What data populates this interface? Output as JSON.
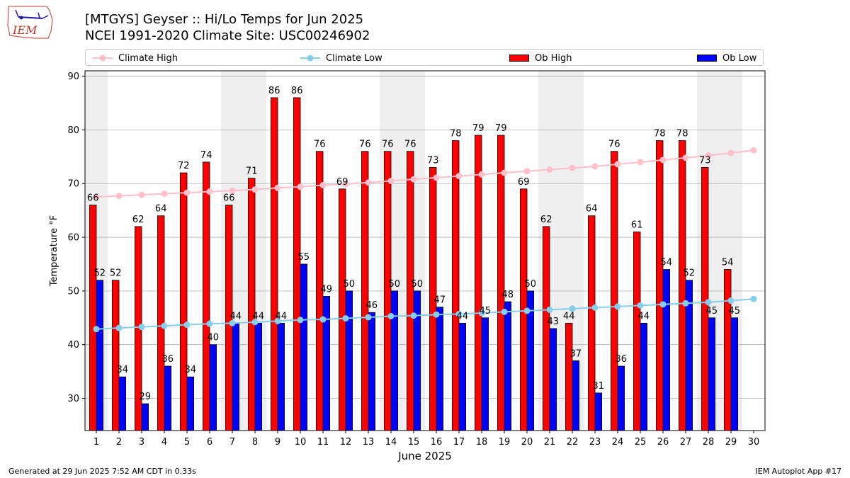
{
  "header": {
    "title": "[MTGYS] Geyser  :: Hi/Lo Temps for Jun 2025",
    "subtitle": "NCEI 1991-2020 Climate Site: USC00246902",
    "logo_text": "IEM"
  },
  "legend": {
    "climate_high": "Climate High",
    "climate_low": "Climate Low",
    "ob_high": "Ob High",
    "ob_low": "Ob Low"
  },
  "footer": {
    "generated": "Generated at 29 Jun 2025 7:52 AM CDT in 0.33s",
    "app": "IEM Autoplot App #17"
  },
  "colors": {
    "ob_high": "#ff0000",
    "ob_low": "#0000ff",
    "climate_high": "#ffc0cb",
    "climate_low": "#87ceeb",
    "weekend_shade": "#efefef",
    "grid": "#b0b0b0"
  },
  "chart_data": {
    "type": "bar",
    "xlabel": "June 2025",
    "ylabel": "Temperature °F",
    "ylim": [
      24,
      91
    ],
    "yticks": [
      30,
      40,
      50,
      60,
      70,
      80,
      90
    ],
    "grid": "horizontal",
    "legend_position": "top",
    "categories": [
      "1",
      "2",
      "3",
      "4",
      "5",
      "6",
      "7",
      "8",
      "9",
      "10",
      "11",
      "12",
      "13",
      "14",
      "15",
      "16",
      "17",
      "18",
      "19",
      "20",
      "21",
      "22",
      "23",
      "24",
      "25",
      "26",
      "27",
      "28",
      "29",
      "30"
    ],
    "shaded_day_ranges": [
      [
        1,
        1
      ],
      [
        7,
        8
      ],
      [
        14,
        15
      ],
      [
        21,
        22
      ],
      [
        28,
        29
      ]
    ],
    "series": [
      {
        "name": "Ob High",
        "kind": "bar",
        "values": [
          66,
          52,
          62,
          64,
          72,
          74,
          66,
          71,
          86,
          86,
          76,
          69,
          76,
          76,
          76,
          73,
          78,
          79,
          79,
          69,
          62,
          44,
          64,
          76,
          61,
          78,
          78,
          73,
          54,
          null
        ]
      },
      {
        "name": "Ob Low",
        "kind": "bar",
        "values": [
          52,
          34,
          29,
          36,
          34,
          40,
          44,
          44,
          44,
          55,
          49,
          50,
          46,
          50,
          50,
          47,
          44,
          45,
          48,
          50,
          43,
          37,
          31,
          36,
          44,
          54,
          52,
          45,
          45,
          null
        ]
      },
      {
        "name": "Climate High",
        "kind": "line",
        "values": [
          67.5,
          67.7,
          67.9,
          68.1,
          68.3,
          68.5,
          68.7,
          68.9,
          69.2,
          69.4,
          69.7,
          69.9,
          70.2,
          70.5,
          70.8,
          71.1,
          71.4,
          71.7,
          72.0,
          72.3,
          72.6,
          72.9,
          73.2,
          73.6,
          74.0,
          74.4,
          74.8,
          75.2,
          75.7,
          76.2
        ]
      },
      {
        "name": "Climate Low",
        "kind": "line",
        "values": [
          42.9,
          43.1,
          43.3,
          43.5,
          43.7,
          43.9,
          44.0,
          44.2,
          44.4,
          44.6,
          44.7,
          44.9,
          45.1,
          45.3,
          45.4,
          45.6,
          45.7,
          45.9,
          46.1,
          46.3,
          46.5,
          46.7,
          46.9,
          47.1,
          47.3,
          47.5,
          47.7,
          47.9,
          48.2,
          48.5
        ]
      }
    ]
  }
}
